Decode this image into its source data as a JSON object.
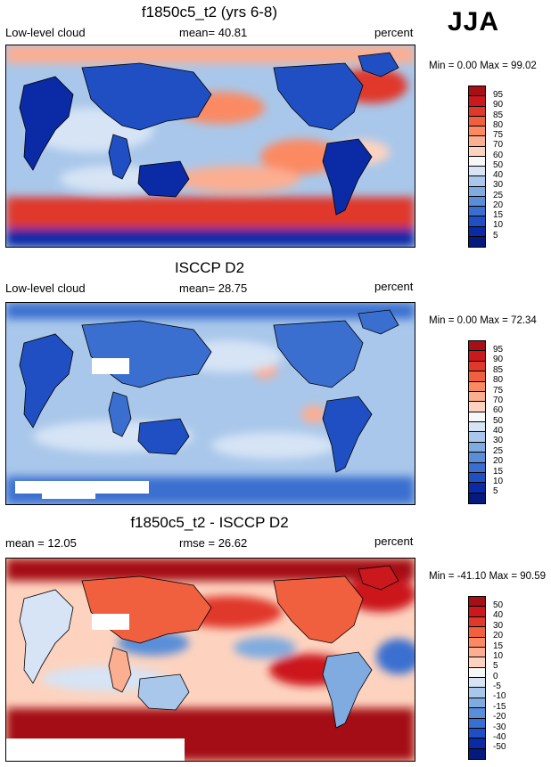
{
  "season": "JJA",
  "panels": [
    {
      "title": "f1850c5_t2 (yrs 6-8)",
      "left_label": "Low-level cloud",
      "mid_label": "mean=  40.81",
      "right_label": "percent",
      "minmax": "Min =   0.00 Max =  99.02",
      "map_name": "model-low-cloud-map",
      "colorbar": {
        "levels": [
          "95",
          "90",
          "85",
          "80",
          "75",
          "70",
          "60",
          "50",
          "40",
          "30",
          "25",
          "20",
          "15",
          "10",
          "5"
        ],
        "colors": [
          "#a50f15",
          "#cb181d",
          "#e0392b",
          "#f0603f",
          "#fb8a63",
          "#fcae91",
          "#fdd3bf",
          "#f7f7f7",
          "#d6e4f5",
          "#a9c7ea",
          "#7fabe0",
          "#5a8ed8",
          "#3a6fd0",
          "#1f4fc2",
          "#0a2aa6",
          "#061a7e"
        ]
      }
    },
    {
      "title": "ISCCP D2",
      "left_label": "Low-level cloud",
      "mid_label": "mean=  28.75",
      "right_label": "percent",
      "minmax": "Min =   0.00 Max =  72.34",
      "map_name": "obs-low-cloud-map",
      "colorbar": {
        "levels": [
          "95",
          "90",
          "85",
          "80",
          "75",
          "70",
          "60",
          "50",
          "40",
          "30",
          "25",
          "20",
          "15",
          "10",
          "5"
        ],
        "colors": [
          "#a50f15",
          "#cb181d",
          "#e0392b",
          "#f0603f",
          "#fb8a63",
          "#fcae91",
          "#fdd3bf",
          "#f7f7f7",
          "#d6e4f5",
          "#a9c7ea",
          "#7fabe0",
          "#5a8ed8",
          "#3a6fd0",
          "#1f4fc2",
          "#0a2aa6",
          "#061a7e"
        ]
      }
    },
    {
      "title": "f1850c5_t2 - ISCCP D2",
      "left_label": "mean =  12.05",
      "mid_label": "rmse =  26.62",
      "right_label": "percent",
      "minmax": "Min = -41.10 Max =  90.59",
      "map_name": "difference-low-cloud-map",
      "colorbar": {
        "levels": [
          "50",
          "40",
          "30",
          "20",
          "15",
          "10",
          "5",
          "0",
          "-5",
          "-10",
          "-15",
          "-20",
          "-30",
          "-40",
          "-50"
        ],
        "colors": [
          "#a50f15",
          "#cb181d",
          "#e0392b",
          "#f0603f",
          "#fb8a63",
          "#fcae91",
          "#fdd3bf",
          "#f7f7f7",
          "#d6e4f5",
          "#a9c7ea",
          "#7fabe0",
          "#5a8ed8",
          "#3a6fd0",
          "#1f4fc2",
          "#0a2aa6",
          "#061a7e"
        ]
      }
    }
  ]
}
